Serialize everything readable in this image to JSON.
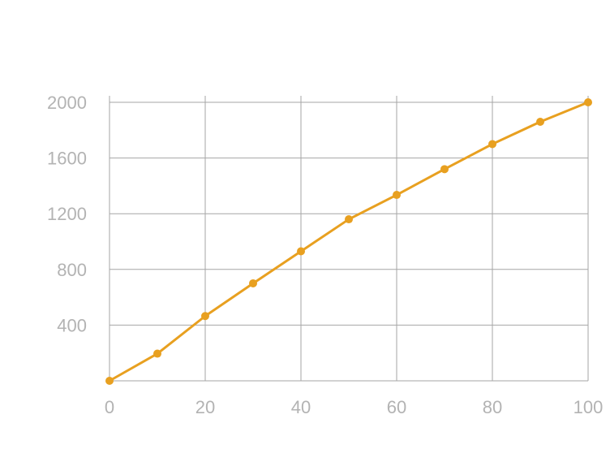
{
  "chart_data": {
    "type": "line",
    "title": "",
    "xlabel": "",
    "ylabel": "",
    "x": [
      0,
      10,
      20,
      30,
      40,
      50,
      60,
      70,
      80,
      90,
      100
    ],
    "series": [
      {
        "values": [
          0,
          195,
          465,
          700,
          930,
          1160,
          1335,
          1520,
          1700,
          1860,
          2000
        ]
      }
    ],
    "xlim": [
      0,
      100
    ],
    "ylim": [
      0,
      2000
    ],
    "x_ticks": [
      0,
      20,
      40,
      60,
      80,
      100
    ],
    "x_tick_labels": [
      "0",
      "20",
      "40",
      "60",
      "80",
      "100"
    ],
    "y_ticks": [
      400,
      800,
      1200,
      1600,
      2000
    ],
    "y_tick_labels": [
      "400",
      "800",
      "1200",
      "1600",
      "2000"
    ],
    "grid": true,
    "legend": "none",
    "colors": {
      "line": "#e8a020",
      "grid": "#a6a6a6",
      "tick_text": "#b3b3b3"
    }
  }
}
